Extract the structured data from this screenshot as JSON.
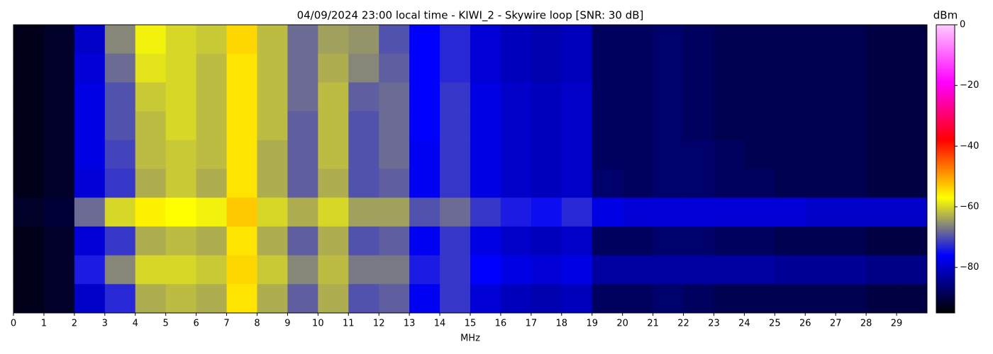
{
  "chart_data": {
    "type": "heatmap",
    "title": "04/09/2024 23:00 local time - KIWI_2 - Skywire loop [SNR: 30 dB]",
    "xlabel": "MHz",
    "colorbar_label": "dBm",
    "xlim": [
      0,
      30
    ],
    "xticks": [
      0,
      1,
      2,
      3,
      4,
      5,
      6,
      7,
      8,
      9,
      10,
      11,
      12,
      13,
      14,
      15,
      16,
      17,
      18,
      19,
      20,
      21,
      22,
      23,
      24,
      25,
      26,
      27,
      28,
      29
    ],
    "bins": [
      0,
      1,
      2,
      3,
      4,
      5,
      6,
      7,
      8,
      9,
      10,
      11,
      12,
      13,
      14,
      15,
      16,
      17,
      18,
      19,
      20,
      21,
      22,
      23,
      24,
      25,
      26,
      27,
      28,
      29,
      30
    ],
    "clim": [
      -95,
      0
    ],
    "cticks": [
      0,
      {
        "value": -20,
        "label": "−20"
      },
      {
        "value": -40,
        "label": "−40"
      },
      {
        "value": -60,
        "label": "−60"
      },
      {
        "value": -80,
        "label": "−80"
      }
    ],
    "colors": [
      "#000000",
      "#0000ff",
      "#ffff00",
      "#ff0000",
      "#ff00ff",
      "#ffccff"
    ],
    "z": [
      [
        -93,
        -92,
        -80,
        -66,
        -58,
        -60,
        -61,
        -54,
        -62,
        -68,
        -64,
        -65,
        -70,
        -76,
        -73,
        -79,
        -81,
        -82,
        -81,
        -88,
        -88,
        -87,
        -88,
        -89,
        -89,
        -89,
        -89,
        -89,
        -90,
        -90
      ],
      [
        -93,
        -92,
        -79,
        -68,
        -59,
        -60,
        -62,
        -55,
        -62,
        -68,
        -63,
        -66,
        -69,
        -76,
        -73,
        -79,
        -81,
        -82,
        -81,
        -88,
        -88,
        -87,
        -88,
        -89,
        -89,
        -89,
        -89,
        -89,
        -90,
        -90
      ],
      [
        -93,
        -92,
        -78,
        -70,
        -61,
        -60,
        -62,
        -55,
        -62,
        -68,
        -62,
        -69,
        -68,
        -76,
        -72,
        -78,
        -80,
        -81,
        -80,
        -88,
        -88,
        -87,
        -88,
        -89,
        -89,
        -89,
        -89,
        -89,
        -90,
        -90
      ],
      [
        -93,
        -92,
        -78,
        -70,
        -62,
        -60,
        -62,
        -55,
        -62,
        -69,
        -62,
        -70,
        -68,
        -76,
        -72,
        -78,
        -80,
        -81,
        -80,
        -88,
        -88,
        -87,
        -88,
        -89,
        -89,
        -89,
        -89,
        -89,
        -90,
        -90
      ],
      [
        -93,
        -92,
        -78,
        -71,
        -62,
        -61,
        -62,
        -55,
        -63,
        -69,
        -62,
        -70,
        -68,
        -77,
        -72,
        -78,
        -80,
        -81,
        -80,
        -88,
        -88,
        -87,
        -87,
        -88,
        -89,
        -89,
        -89,
        -89,
        -90,
        -90
      ],
      [
        -93,
        -92,
        -79,
        -72,
        -63,
        -61,
        -63,
        -55,
        -63,
        -69,
        -63,
        -70,
        -69,
        -77,
        -72,
        -78,
        -80,
        -81,
        -80,
        -87,
        -88,
        -87,
        -87,
        -88,
        -88,
        -89,
        -89,
        -89,
        -90,
        -90
      ],
      [
        -92,
        -91,
        -68,
        -60,
        -56,
        -57,
        -58,
        -53,
        -60,
        -63,
        -60,
        -64,
        -64,
        -70,
        -68,
        -72,
        -74,
        -75,
        -73,
        -78,
        -79,
        -79,
        -79,
        -79,
        -79,
        -79,
        -80,
        -80,
        -80,
        -80
      ],
      [
        -93,
        -92,
        -79,
        -72,
        -63,
        -62,
        -63,
        -55,
        -63,
        -69,
        -63,
        -70,
        -69,
        -77,
        -72,
        -78,
        -80,
        -81,
        -80,
        -88,
        -88,
        -87,
        -87,
        -88,
        -88,
        -89,
        -89,
        -89,
        -90,
        -90
      ],
      [
        -93,
        -92,
        -74,
        -66,
        -60,
        -60,
        -61,
        -54,
        -61,
        -66,
        -62,
        -67,
        -67,
        -74,
        -72,
        -76,
        -78,
        -79,
        -78,
        -83,
        -83,
        -83,
        -83,
        -83,
        -83,
        -84,
        -84,
        -84,
        -85,
        -85
      ],
      [
        -93,
        -92,
        -80,
        -73,
        -63,
        -62,
        -63,
        -55,
        -63,
        -69,
        -63,
        -70,
        -69,
        -77,
        -72,
        -79,
        -81,
        -82,
        -81,
        -88,
        -88,
        -87,
        -88,
        -89,
        -89,
        -89,
        -89,
        -89,
        -90,
        -90
      ]
    ]
  }
}
